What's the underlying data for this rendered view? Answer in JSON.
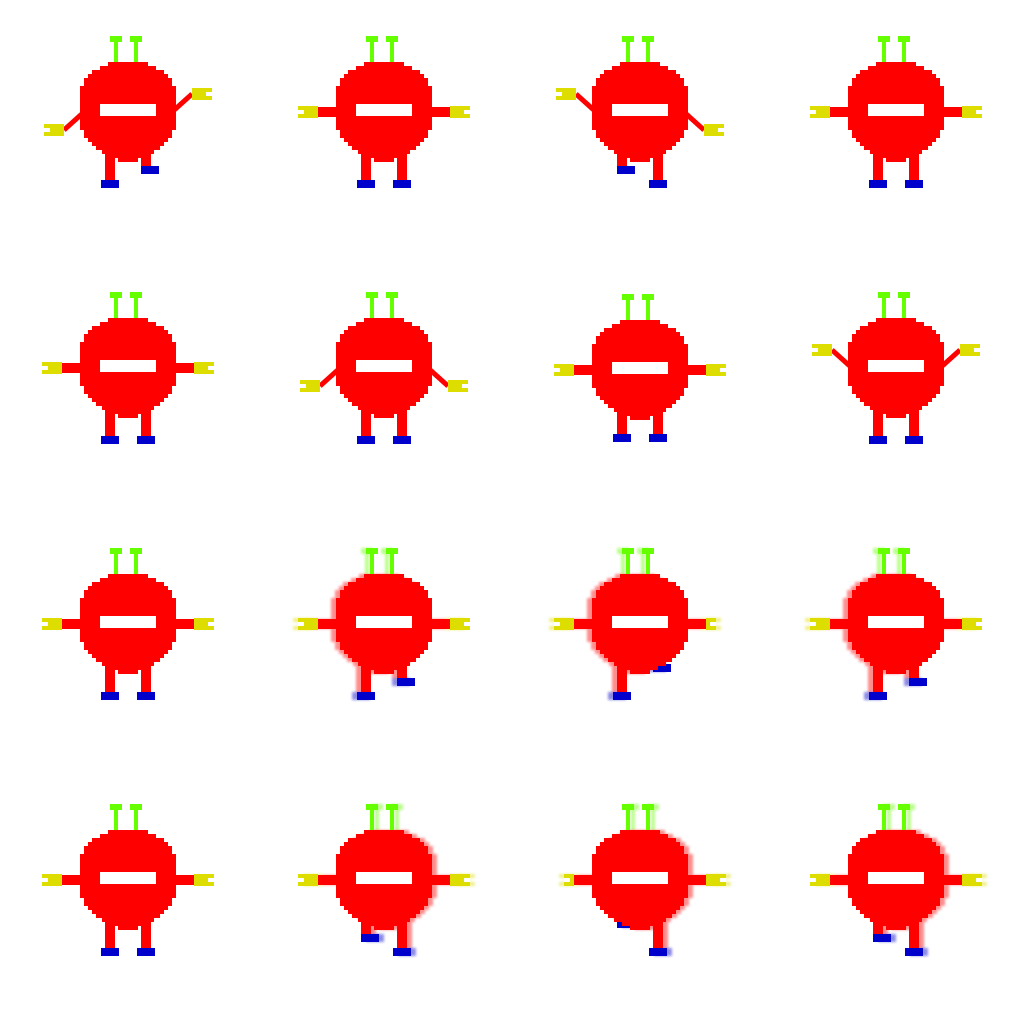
{
  "sprite_sheet": {
    "columns": 4,
    "rows": 4,
    "colors": {
      "background": "#ffffff",
      "body": "#ff0000",
      "mouth": "#ffffff",
      "antenna": "#66ff00",
      "hand": "#dddd00",
      "shoe": "#0000cc"
    },
    "frames": [
      {
        "row": 0,
        "col": 0,
        "pose": "arms-raised-stepping",
        "leftArm": "down",
        "rightArm": "up",
        "leftLegLift": 0,
        "rightLegLift": 1,
        "ghost": "none"
      },
      {
        "row": 0,
        "col": 1,
        "pose": "standing",
        "leftArm": "flat",
        "rightArm": "flat",
        "leftLegLift": 0,
        "rightLegLift": 0,
        "ghost": "none"
      },
      {
        "row": 0,
        "col": 2,
        "pose": "arms-raised-stepping",
        "leftArm": "up",
        "rightArm": "down",
        "leftLegLift": 1,
        "rightLegLift": 0,
        "ghost": "none"
      },
      {
        "row": 0,
        "col": 3,
        "pose": "standing",
        "leftArm": "flat",
        "rightArm": "flat",
        "leftLegLift": 0,
        "rightLegLift": 0,
        "ghost": "none"
      },
      {
        "row": 1,
        "col": 0,
        "pose": "standing",
        "leftArm": "flat",
        "rightArm": "flat",
        "leftLegLift": 0,
        "rightLegLift": 0,
        "ghost": "none"
      },
      {
        "row": 1,
        "col": 1,
        "pose": "arms-down",
        "leftArm": "down",
        "rightArm": "down",
        "leftLegLift": 0,
        "rightLegLift": 0,
        "ghost": "none"
      },
      {
        "row": 1,
        "col": 2,
        "pose": "crouch",
        "leftArm": "flat",
        "rightArm": "flat",
        "leftLegLift": 0,
        "rightLegLift": 0,
        "ghost": "none",
        "crouch": 1
      },
      {
        "row": 1,
        "col": 3,
        "pose": "arms-up",
        "leftArm": "up",
        "rightArm": "up",
        "leftLegLift": 0,
        "rightLegLift": 0,
        "ghost": "none"
      },
      {
        "row": 2,
        "col": 0,
        "pose": "walk",
        "leftArm": "flat",
        "rightArm": "flat",
        "leftLegLift": 0,
        "rightLegLift": 0,
        "ghost": "none"
      },
      {
        "row": 2,
        "col": 1,
        "pose": "walk-blur",
        "leftArm": "flat",
        "rightArm": "flat",
        "leftLegLift": 0,
        "rightLegLift": 1,
        "ghost": "left"
      },
      {
        "row": 2,
        "col": 2,
        "pose": "walk-blur",
        "leftArm": "flat",
        "rightArm": "short",
        "leftLegLift": 0,
        "rightLegLift": 2,
        "ghost": "left"
      },
      {
        "row": 2,
        "col": 3,
        "pose": "walk-blur",
        "leftArm": "flat",
        "rightArm": "flat",
        "leftLegLift": 0,
        "rightLegLift": 1,
        "ghost": "left"
      },
      {
        "row": 3,
        "col": 0,
        "pose": "walk",
        "leftArm": "flat",
        "rightArm": "flat",
        "leftLegLift": 0,
        "rightLegLift": 0,
        "ghost": "none"
      },
      {
        "row": 3,
        "col": 1,
        "pose": "walk-blur",
        "leftArm": "flat",
        "rightArm": "flat",
        "leftLegLift": 1,
        "rightLegLift": 0,
        "ghost": "right"
      },
      {
        "row": 3,
        "col": 2,
        "pose": "walk-blur",
        "leftArm": "short",
        "rightArm": "flat",
        "leftLegLift": 2,
        "rightLegLift": 0,
        "ghost": "right"
      },
      {
        "row": 3,
        "col": 3,
        "pose": "walk-blur",
        "leftArm": "flat",
        "rightArm": "flat",
        "leftLegLift": 1,
        "rightLegLift": 0,
        "ghost": "right"
      }
    ]
  }
}
